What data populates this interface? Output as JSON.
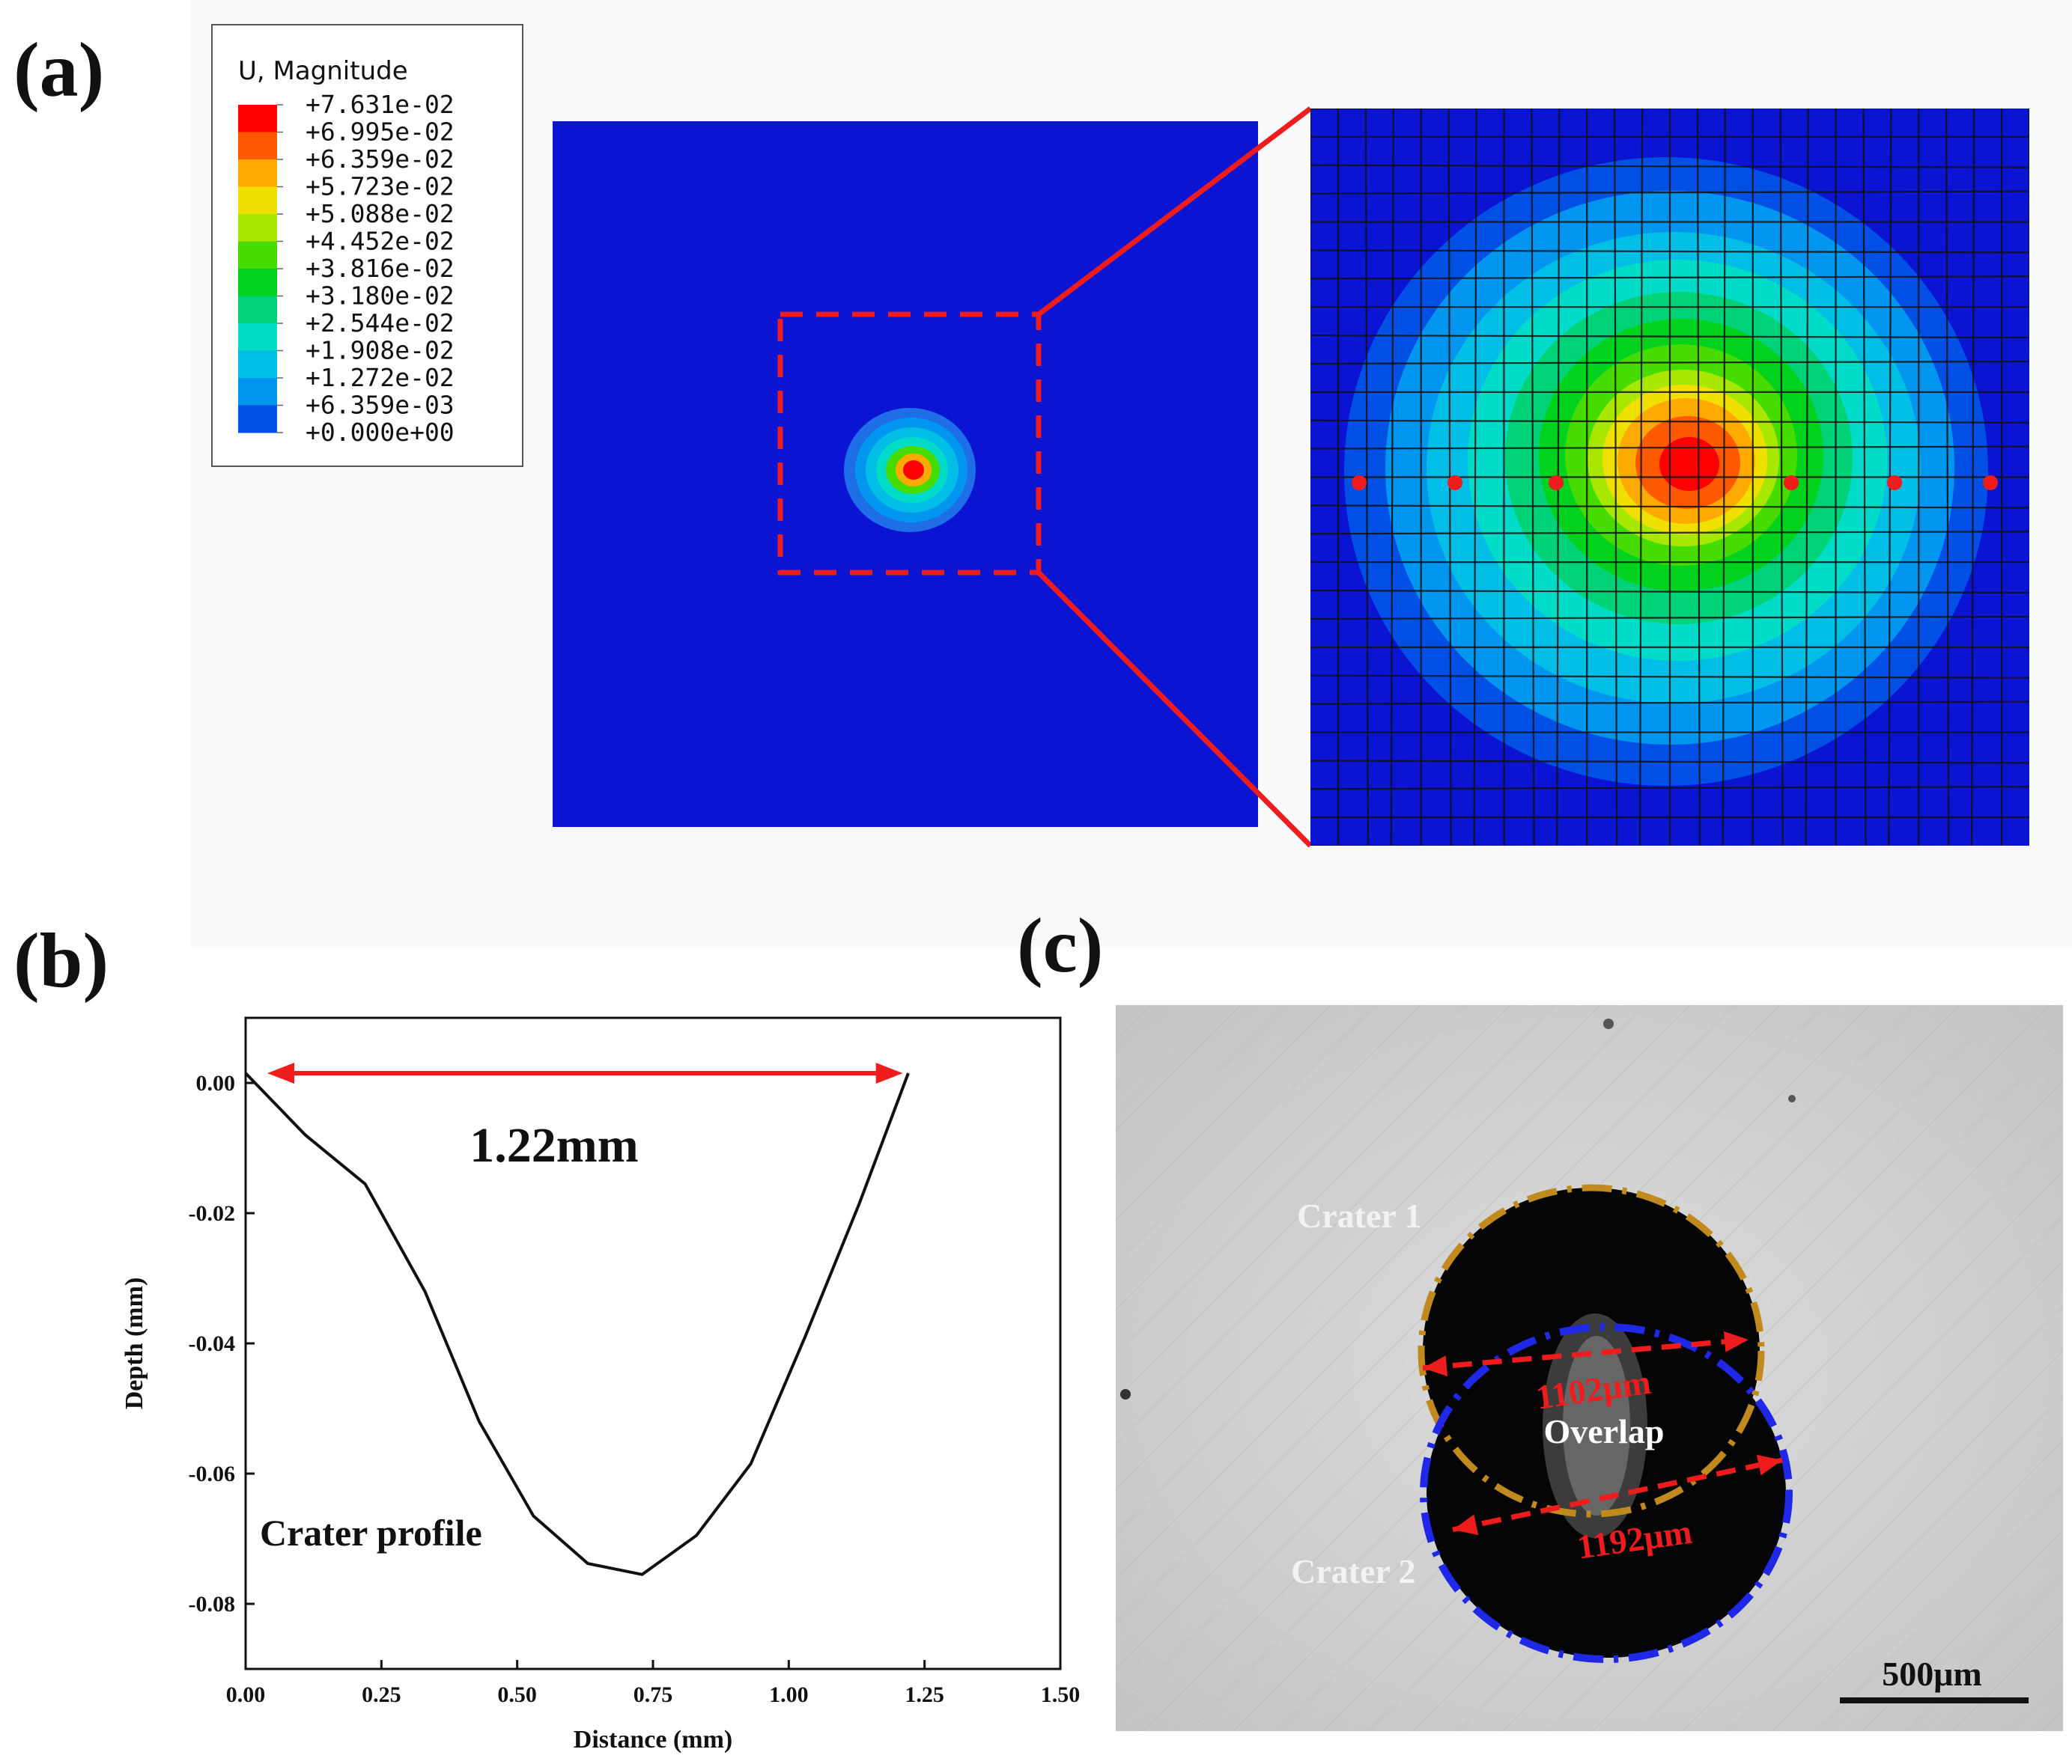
{
  "panels": {
    "a": {
      "label": "(a)",
      "legend": {
        "title": "U, Magnitude",
        "entries": [
          {
            "value": "+7.631e-02",
            "color": "#ff0000"
          },
          {
            "value": "+6.995e-02",
            "color": "#ff5a00"
          },
          {
            "value": "+6.359e-02",
            "color": "#ffaa00"
          },
          {
            "value": "+5.723e-02",
            "color": "#f0e000"
          },
          {
            "value": "+5.088e-02",
            "color": "#a8e800"
          },
          {
            "value": "+4.452e-02",
            "color": "#46dc00"
          },
          {
            "value": "+3.816e-02",
            "color": "#00d21e"
          },
          {
            "value": "+3.180e-02",
            "color": "#00d278"
          },
          {
            "value": "+2.544e-02",
            "color": "#00dcc8"
          },
          {
            "value": "+1.908e-02",
            "color": "#00bee6"
          },
          {
            "value": "+1.272e-02",
            "color": "#0096f0"
          },
          {
            "value": "+6.359e-03",
            "color": "#0050e6"
          },
          {
            "value": "+0.000e+00",
            "color": "#0a14d2"
          }
        ]
      }
    },
    "b": {
      "label": "(b)",
      "annotation_width": "1.22mm",
      "curve_label": "Crater profile"
    },
    "c": {
      "label": "(c)",
      "crater1": "Crater 1",
      "crater2": "Crater 2",
      "overlap": "Overlap",
      "dim1": "1102μm",
      "dim2": "1192μm",
      "scale_bar": "500μm"
    }
  },
  "chart_data": {
    "type": "line",
    "title": "",
    "xlabel": "Distance (mm)",
    "ylabel": "Depth (mm)",
    "xlim": [
      0,
      1.5
    ],
    "ylim": [
      -0.09,
      0.01
    ],
    "xticks": [
      0,
      0.25,
      0.5,
      0.75,
      1.0,
      1.25,
      1.5
    ],
    "xtick_labels": [
      "0.00",
      "0.25",
      "0.50",
      "0.75",
      "1.00",
      "1.25",
      "1.50"
    ],
    "yticks": [
      0,
      -0.02,
      -0.04,
      -0.06,
      -0.08
    ],
    "ytick_labels": [
      "0.00",
      "-0.02",
      "-0.04",
      "-0.06",
      "-0.08"
    ],
    "series": [
      {
        "name": "Crater profile",
        "x": [
          0.0,
          0.11,
          0.22,
          0.33,
          0.43,
          0.53,
          0.63,
          0.73,
          0.83,
          0.93,
          1.03,
          1.13,
          1.22
        ],
        "y": [
          0.0015,
          -0.008,
          -0.0155,
          -0.032,
          -0.052,
          -0.0665,
          -0.0738,
          -0.0755,
          -0.0695,
          -0.0585,
          -0.039,
          -0.0185,
          0.0015
        ]
      }
    ],
    "annotation": {
      "text": "1.22mm",
      "x_start": 0.04,
      "x_end": 1.21,
      "y": 0.0015
    }
  }
}
